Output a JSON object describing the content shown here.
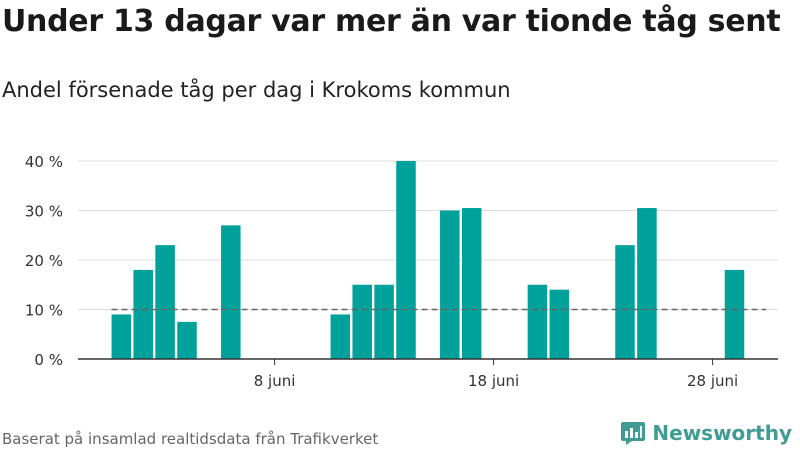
{
  "header": {
    "title": "Under 13 dagar var mer än var tionde tåg sent",
    "subtitle": "Andel försenade tåg per dag i Krokoms kommun"
  },
  "footer": {
    "source": "Baserat på insamlad realtidsdata från Trafikverket",
    "brand": "Newsworthy"
  },
  "colors": {
    "bar": "#00a19a",
    "grid": "#dddddd",
    "axis": "#333333",
    "reference_line": "#666666",
    "brand": "#3f9b93"
  },
  "icons": {
    "brand": "bar-chart-logo-icon"
  },
  "chart_data": {
    "type": "bar",
    "x_unit": "day of June",
    "days": [
      1,
      2,
      3,
      4,
      5,
      6,
      7,
      8,
      9,
      10,
      11,
      12,
      13,
      14,
      15,
      16,
      17,
      18,
      19,
      20,
      21,
      22,
      23,
      24,
      25,
      26,
      27,
      28,
      29,
      30
    ],
    "values": [
      9,
      18,
      23,
      7.5,
      0,
      27,
      0,
      0,
      0,
      0,
      9,
      15,
      15,
      40,
      0,
      30,
      30.5,
      0,
      0,
      15,
      14,
      0,
      0,
      23,
      30.5,
      0,
      0,
      0,
      18,
      0
    ],
    "y_unit": "%",
    "ylim": [
      0,
      40
    ],
    "y_ticks": [
      0,
      10,
      20,
      30,
      40
    ],
    "y_tick_labels": [
      "0 %",
      "10 %",
      "20 %",
      "30 %",
      "40 %"
    ],
    "x_ticks": [
      8,
      18,
      28
    ],
    "x_tick_labels": [
      "8 juni",
      "18 juni",
      "28 juni"
    ],
    "reference_line": {
      "value": 10,
      "style": "dashed"
    },
    "grid": true,
    "legend": "none"
  }
}
